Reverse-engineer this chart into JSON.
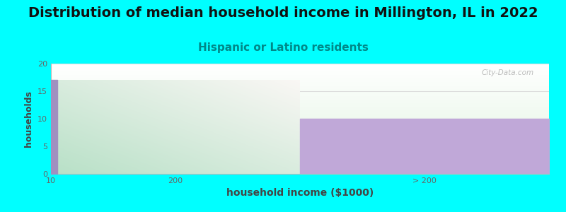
{
  "title": "Distribution of median household income in Millington, IL in 2022",
  "subtitle": "Hispanic or Latino residents",
  "xlabel": "household income ($1000)",
  "ylabel": "households",
  "background_color": "#00FFFF",
  "plot_bg_color": "#FFFFFF",
  "bar1_value": 17,
  "bar2_value": 10,
  "bar2_color": "#c0a8d8",
  "ylim": [
    0,
    20
  ],
  "yticks": [
    0,
    5,
    10,
    15,
    20
  ],
  "title_fontsize": 14,
  "subtitle_fontsize": 11,
  "subtitle_color": "#008888",
  "xlabel_fontsize": 10,
  "ylabel_fontsize": 9,
  "watermark": "City-Data.com",
  "grid_color": "#dddddd",
  "tick_color": "#666666"
}
